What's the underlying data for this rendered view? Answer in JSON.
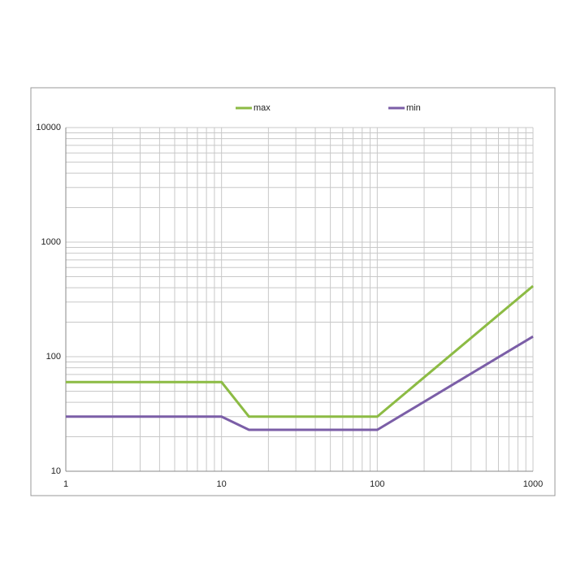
{
  "chart_data": {
    "type": "line",
    "series": [
      {
        "name": "max",
        "color": "#8cbb44",
        "x": [
          1,
          10,
          15,
          100,
          1000
        ],
        "values": [
          60,
          60,
          30,
          30,
          414
        ]
      },
      {
        "name": "min",
        "color": "#7b5ea7",
        "x": [
          1,
          10,
          15,
          100,
          1000
        ],
        "values": [
          30,
          30,
          23,
          23,
          150
        ]
      }
    ],
    "xlim": [
      1,
      1000
    ],
    "xticks": [
      1,
      10,
      100,
      1000
    ],
    "ylim": [
      10,
      10000
    ],
    "yticks": [
      10,
      100,
      1000,
      10000
    ],
    "xlog": true,
    "ylog": true,
    "grid": true,
    "minor_grid": true,
    "legend": "top"
  }
}
